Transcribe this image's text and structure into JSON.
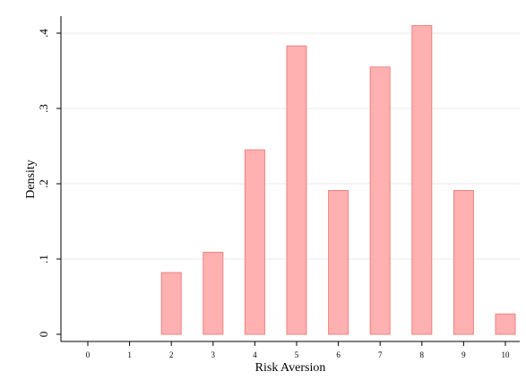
{
  "chart_data": {
    "type": "bar",
    "xlabel": "Risk Aversion",
    "ylabel": "Density",
    "categories": [
      "0",
      "1",
      "2",
      "3",
      "4",
      "5",
      "6",
      "7",
      "8",
      "9",
      "10"
    ],
    "x": [
      0,
      1,
      2,
      3,
      4,
      5,
      6,
      7,
      8,
      9,
      10
    ],
    "values": [
      0,
      0,
      0.082,
      0.109,
      0.245,
      0.383,
      0.191,
      0.355,
      0.41,
      0.191,
      0.027
    ],
    "xlim": [
      -0.6,
      10.6
    ],
    "ylim": [
      -0.01,
      0.43
    ],
    "yticks": [
      0,
      0.1,
      0.2,
      0.3,
      0.4
    ],
    "ytick_labels": [
      "0",
      ".1",
      ".2",
      ".3",
      ".4"
    ],
    "grid": true,
    "colors": {
      "bar_fill": "#ffb0b0",
      "bar_stroke": "#f08080",
      "grid": "#e8e8e8",
      "axis": "#000000"
    }
  }
}
